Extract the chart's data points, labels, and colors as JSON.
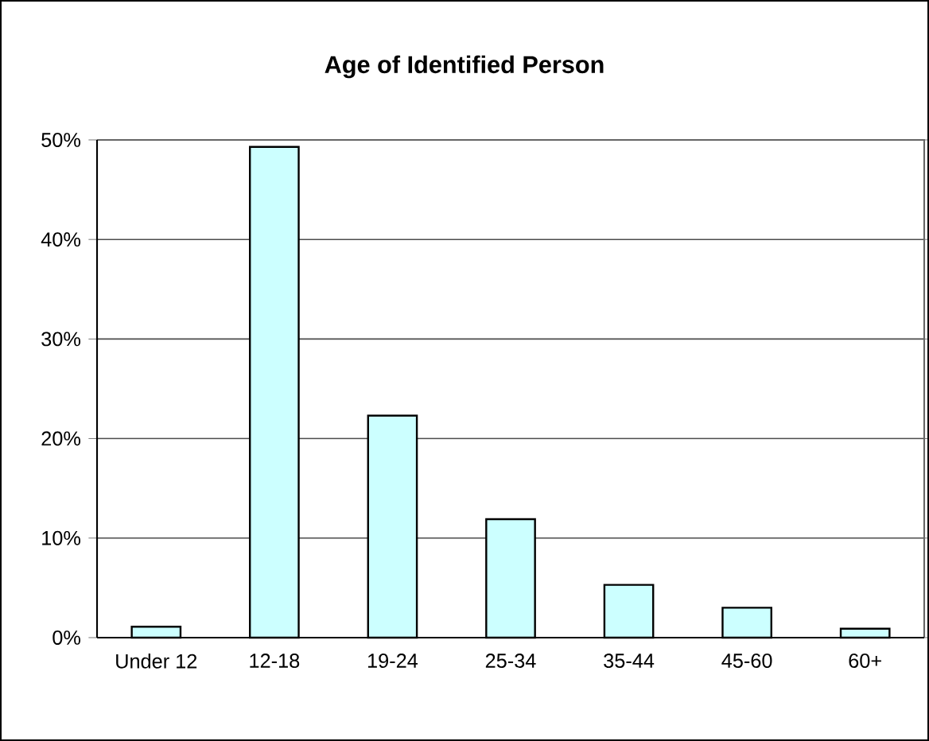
{
  "chart_data": {
    "type": "bar",
    "title": "Age of Identified Person",
    "categories": [
      "Under 12",
      "12-18",
      "19-24",
      "25-34",
      "35-44",
      "45-60",
      "60+"
    ],
    "values": [
      1.1,
      49.3,
      22.3,
      11.9,
      5.3,
      3.0,
      0.9
    ],
    "color": "#ccffff",
    "ylim": [
      0,
      50
    ],
    "yticks": [
      {
        "value": 0,
        "label": "0%"
      },
      {
        "value": 10,
        "label": "10%"
      },
      {
        "value": 20,
        "label": "20%"
      },
      {
        "value": 30,
        "label": "30%"
      },
      {
        "value": 40,
        "label": "40%"
      },
      {
        "value": 50,
        "label": "50%"
      }
    ],
    "grid": "y"
  }
}
